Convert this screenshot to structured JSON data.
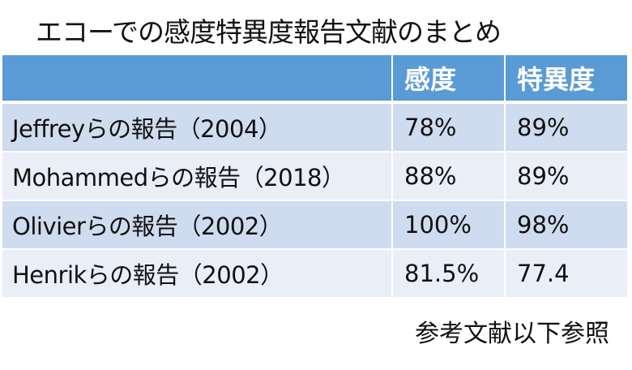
{
  "title": "エコーでの感度特異度報告文献のまとめ",
  "table": {
    "headers": [
      "",
      "感度",
      "特異度"
    ],
    "rows": [
      {
        "study": "Jeffreyらの報告（2004）",
        "sensitivity": "78%",
        "specificity": "89%"
      },
      {
        "study": "Mohammedらの報告（2018）",
        "sensitivity": "88%",
        "specificity": "89%"
      },
      {
        "study": "Olivierらの報告（2002）",
        "sensitivity": "100%",
        "specificity": "98%"
      },
      {
        "study": "Henrikらの報告（2002）",
        "sensitivity": "81.5%",
        "specificity": "77.4"
      }
    ]
  },
  "footer": "参考文献以下参照",
  "colors": {
    "header_bg": "#5B9BD5",
    "row_odd_bg": "#CFDCEF",
    "row_even_bg": "#E9EEF7"
  }
}
